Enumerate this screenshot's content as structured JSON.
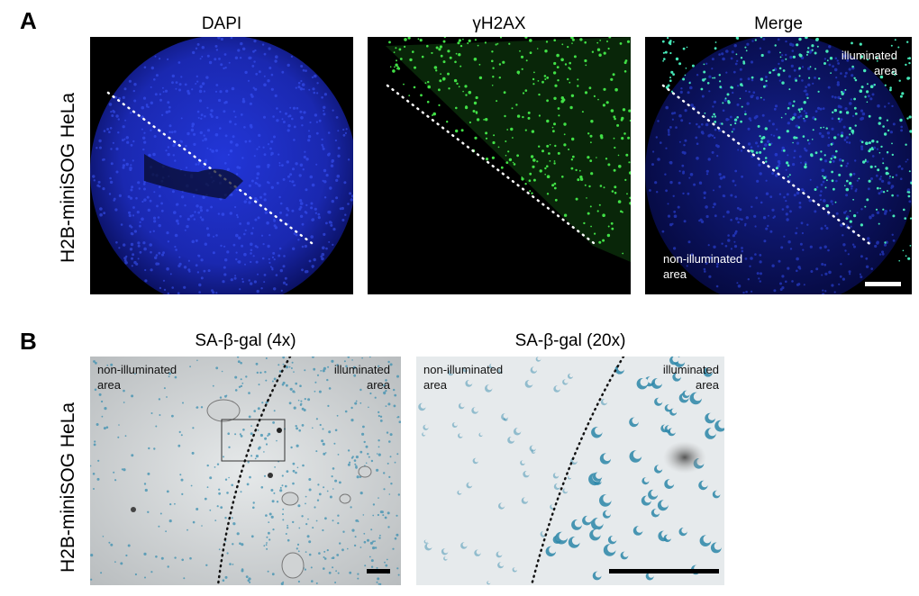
{
  "panel_a": {
    "letter": "A",
    "row_label": "H2B-miniSOG HeLa",
    "titles": {
      "dapi": "DAPI",
      "gamma": "γH2AX",
      "merge": "Merge"
    },
    "merge_labels": {
      "illuminated": [
        "illuminated",
        "area"
      ],
      "non_illuminated": [
        "non-illuminated",
        "area"
      ]
    }
  },
  "panel_b": {
    "letter": "B",
    "row_label": "H2B-miniSOG HeLa",
    "titles": {
      "low": "SA-β-gal (4x)",
      "high": "SA-β-gal (20x)"
    },
    "labels": {
      "non_illuminated": [
        "non-illuminated",
        "area"
      ],
      "illuminated": [
        "illuminated",
        "area"
      ]
    }
  },
  "colors": {
    "dapi": "#2a3cff",
    "gamma": "#39d63a",
    "merge": "#3be0b0",
    "stain": "#2a86a8",
    "field_bg": "#e4e8ea"
  }
}
